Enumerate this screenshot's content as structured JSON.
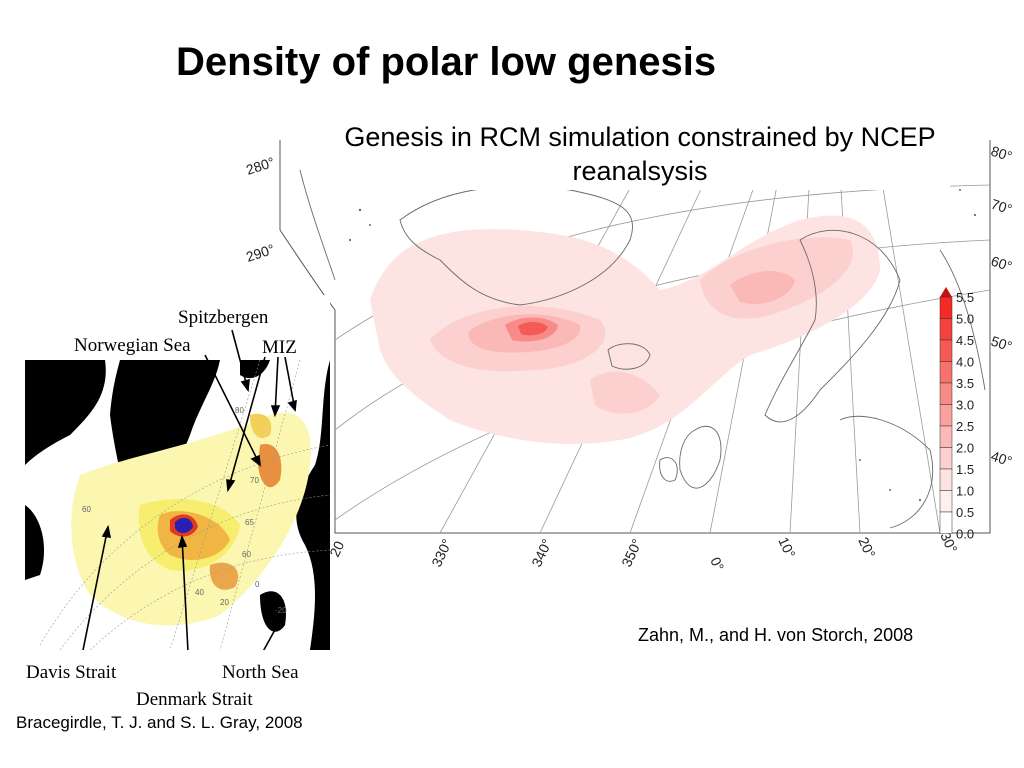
{
  "title": "Density of polar low genesis",
  "right_map": {
    "subtitle": "Genesis in RCM simulation constrained by NCEP reanalsysis",
    "lon_labels": [
      "330°",
      "340°",
      "350°",
      "0°",
      "10°",
      "20°",
      "30°"
    ],
    "partial_lon_label": "20",
    "left_deg_labels": [
      "280°",
      "290°"
    ],
    "right_deg_labels": [
      "80°",
      "70°",
      "60°",
      "50°",
      "40°"
    ],
    "colorbar": {
      "ticks": [
        "5.5",
        "5.0",
        "4.5",
        "4.0",
        "3.5",
        "3.0",
        "2.5",
        "2.0",
        "1.5",
        "1.0",
        "0.5",
        "0.0"
      ],
      "colors": [
        "#f42a24",
        "#f5413b",
        "#f65a55",
        "#f7716d",
        "#f88a87",
        "#f9a19f",
        "#fab8b6",
        "#fcd0cf",
        "#fde3e2",
        "#fef0ef",
        "#ffffff"
      ],
      "arrow_color": "#c81010"
    },
    "credit": "Zahn, M., and H. von Storch, 2008"
  },
  "left_map": {
    "labels": {
      "spitzbergen": "Spitzbergen",
      "norwegian_sea": "Norwegian Sea",
      "miz": "MIZ",
      "davis_strait": "Davis Strait",
      "denmark_strait": "Denmark Strait",
      "north_sea": "North Sea"
    },
    "grid_labels": [
      "80",
      "70",
      "65",
      "60",
      "60",
      "40",
      "20",
      "0",
      "-20"
    ],
    "credit": "Bracegirdle, T. J. and S. L. Gray, 2008"
  }
}
